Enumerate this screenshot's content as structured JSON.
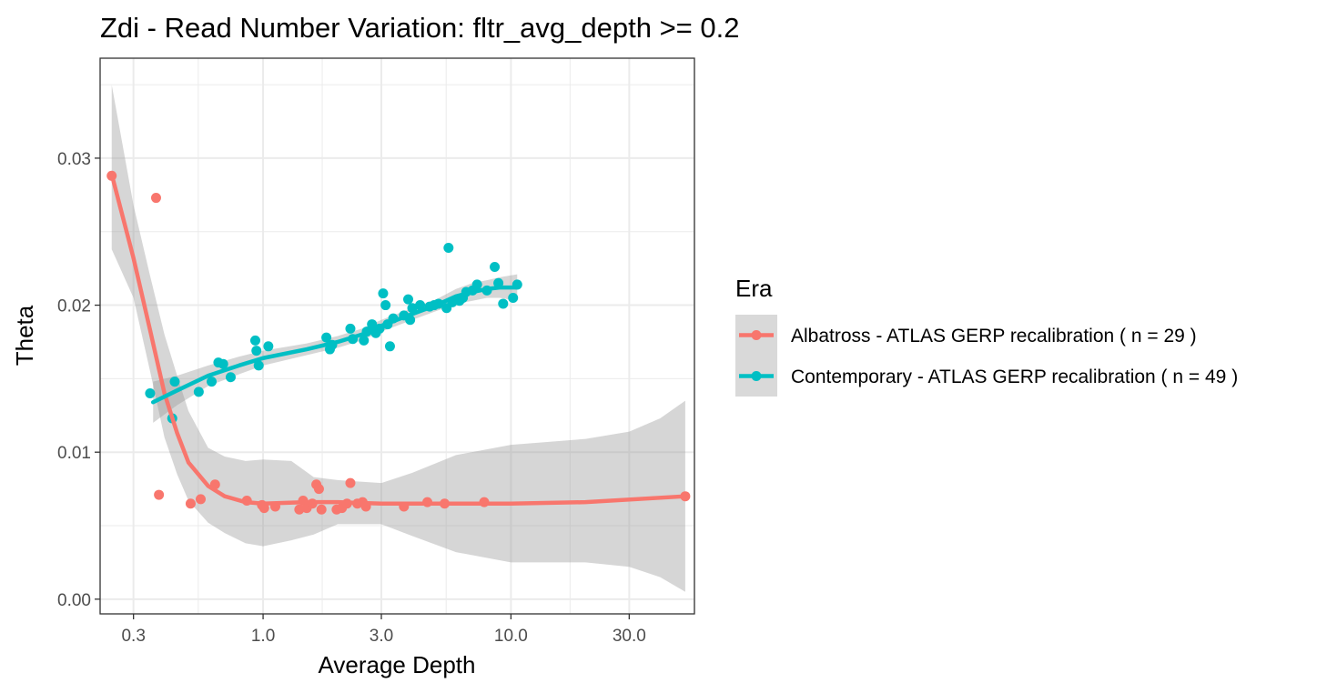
{
  "chart_data": {
    "type": "scatter",
    "title": "Zdi - Read Number Variation: fltr_avg_depth >=  0.2",
    "xlabel": "Average Depth",
    "ylabel": "Theta",
    "x_scale": "log10",
    "xlim": [
      0.22,
      55
    ],
    "ylim": [
      -0.001,
      0.0368
    ],
    "x_ticks": [
      0.3,
      1.0,
      3.0,
      10.0,
      30.0
    ],
    "x_tick_labels": [
      "0.3",
      "1.0",
      "3.0",
      "10.0",
      "30.0"
    ],
    "y_ticks": [
      0.0,
      0.01,
      0.02,
      0.03
    ],
    "y_tick_labels": [
      "0.00",
      "0.01",
      "0.02",
      "0.03"
    ],
    "grid": true,
    "legend": {
      "title": "Era",
      "position": "right"
    },
    "series": [
      {
        "name": "Albatross - ATLAS GERP recalibration ( n = 29 )",
        "color": "#F8766D",
        "points": [
          [
            0.245,
            0.0288
          ],
          [
            0.37,
            0.0273
          ],
          [
            0.38,
            0.0071
          ],
          [
            0.51,
            0.0065
          ],
          [
            0.56,
            0.0068
          ],
          [
            0.64,
            0.0078
          ],
          [
            0.86,
            0.0067
          ],
          [
            0.99,
            0.0064
          ],
          [
            1.01,
            0.0062
          ],
          [
            1.12,
            0.0063
          ],
          [
            1.4,
            0.0061
          ],
          [
            1.45,
            0.0067
          ],
          [
            1.5,
            0.0062
          ],
          [
            1.64,
            0.0078
          ],
          [
            1.68,
            0.0075
          ],
          [
            1.72,
            0.0061
          ],
          [
            1.98,
            0.0061
          ],
          [
            2.08,
            0.0062
          ],
          [
            2.18,
            0.0065
          ],
          [
            2.25,
            0.0079
          ],
          [
            2.4,
            0.0065
          ],
          [
            2.52,
            0.0066
          ],
          [
            2.6,
            0.0063
          ],
          [
            3.7,
            0.0063
          ],
          [
            4.6,
            0.0066
          ],
          [
            5.4,
            0.0065
          ],
          [
            7.8,
            0.0066
          ],
          [
            50.5,
            0.007
          ],
          [
            1.58,
            0.0065
          ]
        ],
        "fit": [
          [
            0.245,
            0.0289
          ],
          [
            0.3,
            0.0232
          ],
          [
            0.35,
            0.0183
          ],
          [
            0.4,
            0.014
          ],
          [
            0.45,
            0.0113
          ],
          [
            0.5,
            0.0093
          ],
          [
            0.6,
            0.0077
          ],
          [
            0.7,
            0.007
          ],
          [
            0.85,
            0.0066
          ],
          [
            1.0,
            0.0065
          ],
          [
            1.5,
            0.0066
          ],
          [
            2.0,
            0.0066
          ],
          [
            3.0,
            0.0065
          ],
          [
            5.0,
            0.0065
          ],
          [
            10.0,
            0.0065
          ],
          [
            20.0,
            0.0066
          ],
          [
            50.5,
            0.007
          ]
        ],
        "ci_upper": [
          [
            0.245,
            0.035
          ],
          [
            0.3,
            0.0268
          ],
          [
            0.35,
            0.022
          ],
          [
            0.4,
            0.018
          ],
          [
            0.45,
            0.0152
          ],
          [
            0.5,
            0.0128
          ],
          [
            0.6,
            0.0103
          ],
          [
            0.7,
            0.0097
          ],
          [
            0.85,
            0.0094
          ],
          [
            1.0,
            0.0095
          ],
          [
            1.3,
            0.0094
          ],
          [
            1.6,
            0.0083
          ],
          [
            2.0,
            0.0081
          ],
          [
            3.0,
            0.0079
          ],
          [
            4.0,
            0.0086
          ],
          [
            6.0,
            0.0098
          ],
          [
            10.0,
            0.0105
          ],
          [
            20.0,
            0.0109
          ],
          [
            30.0,
            0.0114
          ],
          [
            40.0,
            0.0123
          ],
          [
            50.5,
            0.0135
          ]
        ],
        "ci_lower": [
          [
            0.245,
            0.0238
          ],
          [
            0.3,
            0.0205
          ],
          [
            0.35,
            0.0155
          ],
          [
            0.4,
            0.011
          ],
          [
            0.45,
            0.0085
          ],
          [
            0.5,
            0.0067
          ],
          [
            0.6,
            0.0052
          ],
          [
            0.7,
            0.0045
          ],
          [
            0.85,
            0.0038
          ],
          [
            1.0,
            0.0036
          ],
          [
            1.3,
            0.004
          ],
          [
            1.6,
            0.0044
          ],
          [
            2.0,
            0.0051
          ],
          [
            3.0,
            0.0051
          ],
          [
            4.0,
            0.0043
          ],
          [
            6.0,
            0.0032
          ],
          [
            10.0,
            0.0025
          ],
          [
            20.0,
            0.0025
          ],
          [
            30.0,
            0.0022
          ],
          [
            40.0,
            0.0015
          ],
          [
            50.5,
            0.0005
          ]
        ]
      },
      {
        "name": "Contemporary - ATLAS GERP recalibration ( n = 49 )",
        "color": "#00BFC4",
        "points": [
          [
            0.35,
            0.014
          ],
          [
            0.43,
            0.0123
          ],
          [
            0.44,
            0.0148
          ],
          [
            0.55,
            0.0141
          ],
          [
            0.62,
            0.0148
          ],
          [
            0.66,
            0.0161
          ],
          [
            0.69,
            0.016
          ],
          [
            0.74,
            0.0151
          ],
          [
            0.93,
            0.0176
          ],
          [
            0.94,
            0.0169
          ],
          [
            0.96,
            0.0159
          ],
          [
            1.05,
            0.0172
          ],
          [
            1.8,
            0.0178
          ],
          [
            1.86,
            0.017
          ],
          [
            1.9,
            0.0173
          ],
          [
            2.25,
            0.0184
          ],
          [
            2.3,
            0.0177
          ],
          [
            2.55,
            0.0176
          ],
          [
            2.62,
            0.0182
          ],
          [
            2.75,
            0.0187
          ],
          [
            2.85,
            0.0181
          ],
          [
            3.05,
            0.0208
          ],
          [
            3.12,
            0.02
          ],
          [
            3.18,
            0.0187
          ],
          [
            3.25,
            0.0172
          ],
          [
            3.35,
            0.0191
          ],
          [
            3.7,
            0.0193
          ],
          [
            3.85,
            0.0204
          ],
          [
            3.92,
            0.019
          ],
          [
            4.0,
            0.0198
          ],
          [
            4.3,
            0.02
          ],
          [
            4.7,
            0.0199
          ],
          [
            5.1,
            0.0201
          ],
          [
            5.5,
            0.0198
          ],
          [
            5.6,
            0.0239
          ],
          [
            5.8,
            0.0202
          ],
          [
            6.4,
            0.0205
          ],
          [
            6.6,
            0.0209
          ],
          [
            7.0,
            0.021
          ],
          [
            7.3,
            0.0214
          ],
          [
            8.0,
            0.021
          ],
          [
            8.6,
            0.0226
          ],
          [
            8.9,
            0.0215
          ],
          [
            9.3,
            0.0201
          ],
          [
            10.2,
            0.0205
          ],
          [
            10.6,
            0.0214
          ],
          [
            6.2,
            0.0203
          ],
          [
            4.9,
            0.02
          ],
          [
            2.95,
            0.0184
          ]
        ],
        "fit": [
          [
            0.36,
            0.0134
          ],
          [
            0.45,
            0.0142
          ],
          [
            0.6,
            0.0152
          ],
          [
            0.8,
            0.0159
          ],
          [
            1.0,
            0.0164
          ],
          [
            1.5,
            0.017
          ],
          [
            2.0,
            0.0175
          ],
          [
            2.5,
            0.018
          ],
          [
            3.0,
            0.0186
          ],
          [
            4.0,
            0.0194
          ],
          [
            5.0,
            0.02
          ],
          [
            6.0,
            0.0206
          ],
          [
            7.0,
            0.0209
          ],
          [
            8.0,
            0.0211
          ],
          [
            9.0,
            0.0212
          ],
          [
            10.6,
            0.0212
          ]
        ],
        "ci_upper": [
          [
            0.36,
            0.0148
          ],
          [
            0.45,
            0.0152
          ],
          [
            0.6,
            0.0159
          ],
          [
            0.8,
            0.0165
          ],
          [
            1.0,
            0.0169
          ],
          [
            1.5,
            0.0174
          ],
          [
            2.0,
            0.0179
          ],
          [
            2.5,
            0.0184
          ],
          [
            3.0,
            0.019
          ],
          [
            4.0,
            0.0198
          ],
          [
            5.0,
            0.0204
          ],
          [
            6.0,
            0.0211
          ],
          [
            7.0,
            0.0215
          ],
          [
            8.0,
            0.0217
          ],
          [
            9.0,
            0.0219
          ],
          [
            10.6,
            0.0221
          ]
        ],
        "ci_lower": [
          [
            0.36,
            0.012
          ],
          [
            0.45,
            0.0132
          ],
          [
            0.6,
            0.0145
          ],
          [
            0.8,
            0.0153
          ],
          [
            1.0,
            0.0159
          ],
          [
            1.5,
            0.0166
          ],
          [
            2.0,
            0.0171
          ],
          [
            2.5,
            0.0176
          ],
          [
            3.0,
            0.0182
          ],
          [
            4.0,
            0.019
          ],
          [
            5.0,
            0.0196
          ],
          [
            6.0,
            0.0201
          ],
          [
            7.0,
            0.0203
          ],
          [
            8.0,
            0.0205
          ],
          [
            9.0,
            0.0205
          ],
          [
            10.6,
            0.0203
          ]
        ]
      }
    ]
  }
}
